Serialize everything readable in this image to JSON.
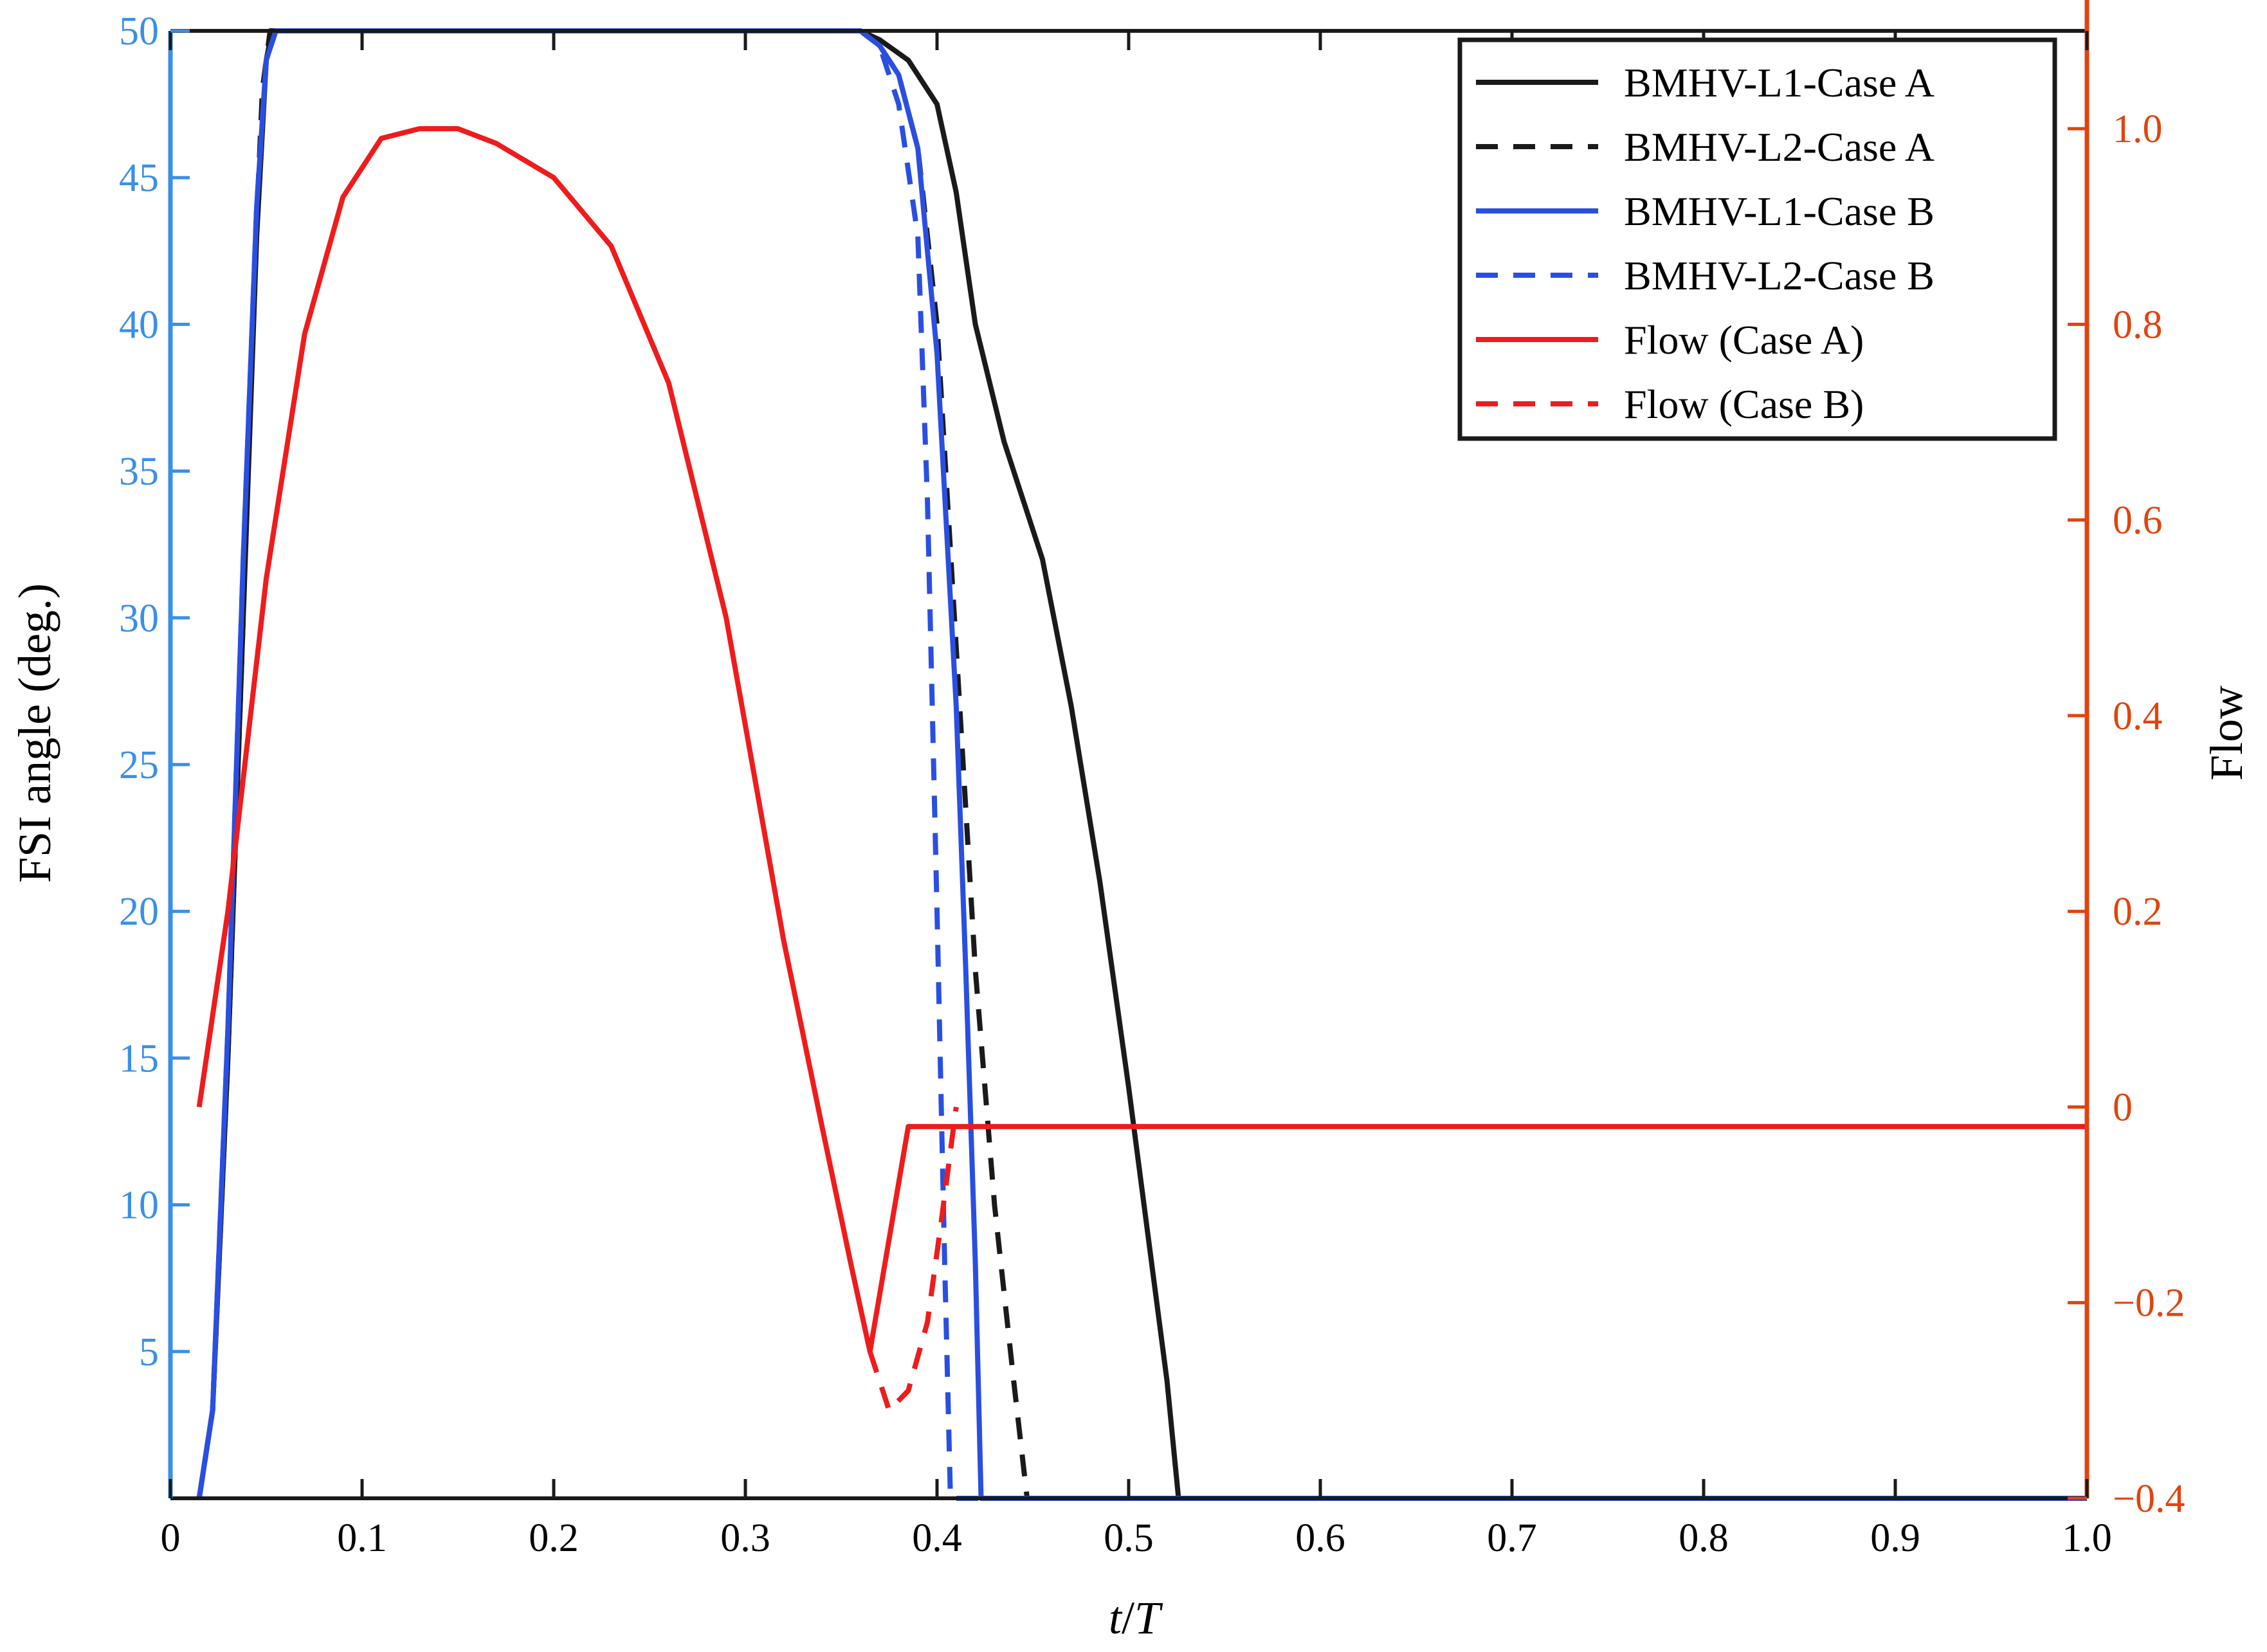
{
  "chart_data": {
    "type": "line",
    "xlabel_italic_t": "t",
    "xlabel_slash": "/",
    "xlabel_italic_T": "T",
    "ylabel_left": "FSI angle (deg.)",
    "ylabel_right": "Flow",
    "xlim": [
      0,
      1.0
    ],
    "ylim_left": [
      0,
      50
    ],
    "ylim_right": [
      -0.4,
      1.1
    ],
    "x_ticks": [
      "0",
      "0.1",
      "0.2",
      "0.3",
      "0.4",
      "0.5",
      "0.6",
      "0.7",
      "0.8",
      "0.9",
      "1.0"
    ],
    "y_left_ticks": [
      "5",
      "10",
      "15",
      "20",
      "25",
      "30",
      "35",
      "40",
      "45",
      "50"
    ],
    "y_right_ticks": [
      "−0.4",
      "−0.2",
      "0",
      "0.2",
      "0.4",
      "0.6",
      "0.8",
      "1.0"
    ],
    "grid": false,
    "legend_position": "top-right",
    "colors": {
      "left_axis": "#3a8fe8",
      "right_axis": "#e0440e",
      "black": "#1a1a1a",
      "blue": "#2a4fe0",
      "red": "#ee1c1c"
    },
    "series": [
      {
        "name": "BMHV-L1-Case A",
        "axis": "left",
        "color": "#1a1a1a",
        "dash": false,
        "points": [
          [
            0.015,
            0
          ],
          [
            0.022,
            3
          ],
          [
            0.03,
            15
          ],
          [
            0.038,
            30
          ],
          [
            0.045,
            43
          ],
          [
            0.05,
            49
          ],
          [
            0.053,
            50
          ],
          [
            0.062,
            50
          ],
          [
            0.3,
            50
          ],
          [
            0.36,
            50
          ],
          [
            0.37,
            49.7
          ],
          [
            0.385,
            49
          ],
          [
            0.4,
            47.5
          ],
          [
            0.41,
            44.5
          ],
          [
            0.42,
            40
          ],
          [
            0.435,
            36
          ],
          [
            0.455,
            32
          ],
          [
            0.47,
            27
          ],
          [
            0.485,
            21
          ],
          [
            0.5,
            14
          ],
          [
            0.51,
            9
          ],
          [
            0.52,
            4
          ],
          [
            0.526,
            0
          ],
          [
            1.0,
            0
          ]
        ]
      },
      {
        "name": "BMHV-L2-Case A",
        "axis": "left",
        "color": "#1a1a1a",
        "dash": true,
        "points": [
          [
            0.015,
            0
          ],
          [
            0.022,
            3
          ],
          [
            0.03,
            15
          ],
          [
            0.038,
            30
          ],
          [
            0.044,
            42
          ],
          [
            0.048,
            48
          ],
          [
            0.052,
            50
          ],
          [
            0.36,
            50
          ],
          [
            0.37,
            49.5
          ],
          [
            0.38,
            48.5
          ],
          [
            0.39,
            46
          ],
          [
            0.4,
            40
          ],
          [
            0.41,
            29
          ],
          [
            0.42,
            18
          ],
          [
            0.43,
            10
          ],
          [
            0.44,
            4
          ],
          [
            0.447,
            0
          ],
          [
            1.0,
            0
          ]
        ]
      },
      {
        "name": "BMHV-L1-Case B",
        "axis": "left",
        "color": "#2a4fe0",
        "dash": false,
        "points": [
          [
            0.015,
            0
          ],
          [
            0.022,
            3
          ],
          [
            0.03,
            16
          ],
          [
            0.038,
            32
          ],
          [
            0.045,
            44
          ],
          [
            0.05,
            49
          ],
          [
            0.055,
            50
          ],
          [
            0.36,
            50
          ],
          [
            0.37,
            49.5
          ],
          [
            0.38,
            48.5
          ],
          [
            0.39,
            46
          ],
          [
            0.4,
            39
          ],
          [
            0.41,
            27
          ],
          [
            0.415,
            18
          ],
          [
            0.42,
            8
          ],
          [
            0.423,
            0
          ],
          [
            1.0,
            0
          ]
        ]
      },
      {
        "name": "BMHV-L2-Case B",
        "axis": "left",
        "color": "#2a4fe0",
        "dash": true,
        "points": [
          [
            0.015,
            0
          ],
          [
            0.022,
            3
          ],
          [
            0.03,
            16
          ],
          [
            0.038,
            32
          ],
          [
            0.045,
            44
          ],
          [
            0.05,
            49
          ],
          [
            0.055,
            50
          ],
          [
            0.36,
            50
          ],
          [
            0.37,
            49.5
          ],
          [
            0.38,
            47.5
          ],
          [
            0.39,
            43
          ],
          [
            0.395,
            34
          ],
          [
            0.4,
            20
          ],
          [
            0.404,
            8
          ],
          [
            0.407,
            0
          ],
          [
            1.0,
            0
          ]
        ]
      },
      {
        "name": "Flow (Case A)",
        "axis": "right",
        "color": "#ee1c1c",
        "dash": false,
        "points": [
          [
            0.015,
            0
          ],
          [
            0.03,
            0.2
          ],
          [
            0.05,
            0.54
          ],
          [
            0.07,
            0.79
          ],
          [
            0.09,
            0.93
          ],
          [
            0.11,
            0.99
          ],
          [
            0.13,
            1.0
          ],
          [
            0.15,
            1.0
          ],
          [
            0.17,
            0.985
          ],
          [
            0.2,
            0.95
          ],
          [
            0.23,
            0.88
          ],
          [
            0.26,
            0.74
          ],
          [
            0.29,
            0.5
          ],
          [
            0.32,
            0.17
          ],
          [
            0.34,
            -0.02
          ],
          [
            0.355,
            -0.16
          ],
          [
            0.365,
            -0.25
          ],
          [
            0.385,
            -0.02
          ],
          [
            1.0,
            -0.02
          ]
        ]
      },
      {
        "name": "Flow (Case B)",
        "axis": "right",
        "color": "#ee1c1c",
        "dash": true,
        "points": [
          [
            0.365,
            -0.25
          ],
          [
            0.375,
            -0.31
          ],
          [
            0.385,
            -0.29
          ],
          [
            0.395,
            -0.22
          ],
          [
            0.402,
            -0.12
          ],
          [
            0.41,
            0.0
          ]
        ]
      }
    ]
  }
}
